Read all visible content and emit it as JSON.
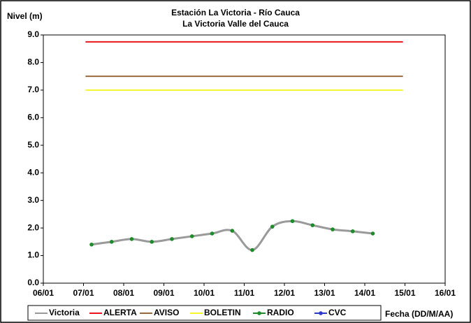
{
  "chart_data": {
    "type": "line",
    "title": "Estación La Victoria - Río Cauca",
    "subtitle": "La Victoria Valle del Cauca",
    "y_label": "Nivel (m)",
    "x_label": "Fecha (DD/M/AA)",
    "xlim": [
      6,
      16
    ],
    "xticks": [
      {
        "value": 6,
        "label": "06/01"
      },
      {
        "value": 7,
        "label": "07/01"
      },
      {
        "value": 8,
        "label": "08/01"
      },
      {
        "value": 9,
        "label": "09/01"
      },
      {
        "value": 10,
        "label": "10/01"
      },
      {
        "value": 11,
        "label": "11/01"
      },
      {
        "value": 12,
        "label": "12/01"
      },
      {
        "value": 13,
        "label": "13/01"
      },
      {
        "value": 14,
        "label": "14/01"
      },
      {
        "value": 15,
        "label": "15/01"
      },
      {
        "value": 16,
        "label": "16/01"
      }
    ],
    "ylim": [
      0,
      9
    ],
    "yticks": [
      {
        "value": 0,
        "label": "0.0"
      },
      {
        "value": 1,
        "label": "1.0"
      },
      {
        "value": 2,
        "label": "2.0"
      },
      {
        "value": 3,
        "label": "3.0"
      },
      {
        "value": 4,
        "label": "4.0"
      },
      {
        "value": 5,
        "label": "5.0"
      },
      {
        "value": 6,
        "label": "6.0"
      },
      {
        "value": 7,
        "label": "7.0"
      },
      {
        "value": 8,
        "label": "8.0"
      },
      {
        "value": 9,
        "label": "9.0"
      }
    ],
    "grid": false,
    "series": [
      {
        "name": "Victoria",
        "color": "#9a9a9a",
        "style": "smooth",
        "x": [
          7.2,
          7.7,
          8.2,
          8.7,
          9.2,
          9.7,
          10.2,
          10.7,
          11.2,
          11.7,
          12.2,
          12.7,
          13.2,
          13.7,
          14.2
        ],
        "values": [
          1.4,
          1.5,
          1.6,
          1.5,
          1.6,
          1.7,
          1.8,
          1.9,
          1.2,
          2.05,
          2.25,
          2.1,
          1.95,
          1.88,
          1.8
        ]
      },
      {
        "name": "ALERTA",
        "color": "#e8161b",
        "style": "line",
        "x": [
          7.05,
          14.95
        ],
        "values": [
          8.75,
          8.75
        ]
      },
      {
        "name": "AVISO",
        "color": "#9b6a3c",
        "style": "line",
        "x": [
          7.05,
          14.95
        ],
        "values": [
          7.5,
          7.5
        ]
      },
      {
        "name": "BOLETIN",
        "color": "#f5f52a",
        "style": "line",
        "x": [
          7.05,
          14.95
        ],
        "values": [
          7.0,
          7.0
        ]
      },
      {
        "name": "RADIO",
        "color": "#1e8c2a",
        "style": "markers",
        "x": [
          7.2,
          7.7,
          8.2,
          8.7,
          9.2,
          9.7,
          10.2,
          10.7,
          11.2,
          11.7,
          12.2,
          12.7,
          13.2,
          13.7,
          14.2
        ],
        "values": [
          1.4,
          1.5,
          1.6,
          1.5,
          1.6,
          1.7,
          1.8,
          1.9,
          1.2,
          2.05,
          2.25,
          2.1,
          1.95,
          1.88,
          1.8
        ]
      },
      {
        "name": "CVC",
        "color": "#2a3cc8",
        "style": "markers",
        "x": [
          7.2
        ],
        "values": [
          null
        ]
      }
    ]
  }
}
